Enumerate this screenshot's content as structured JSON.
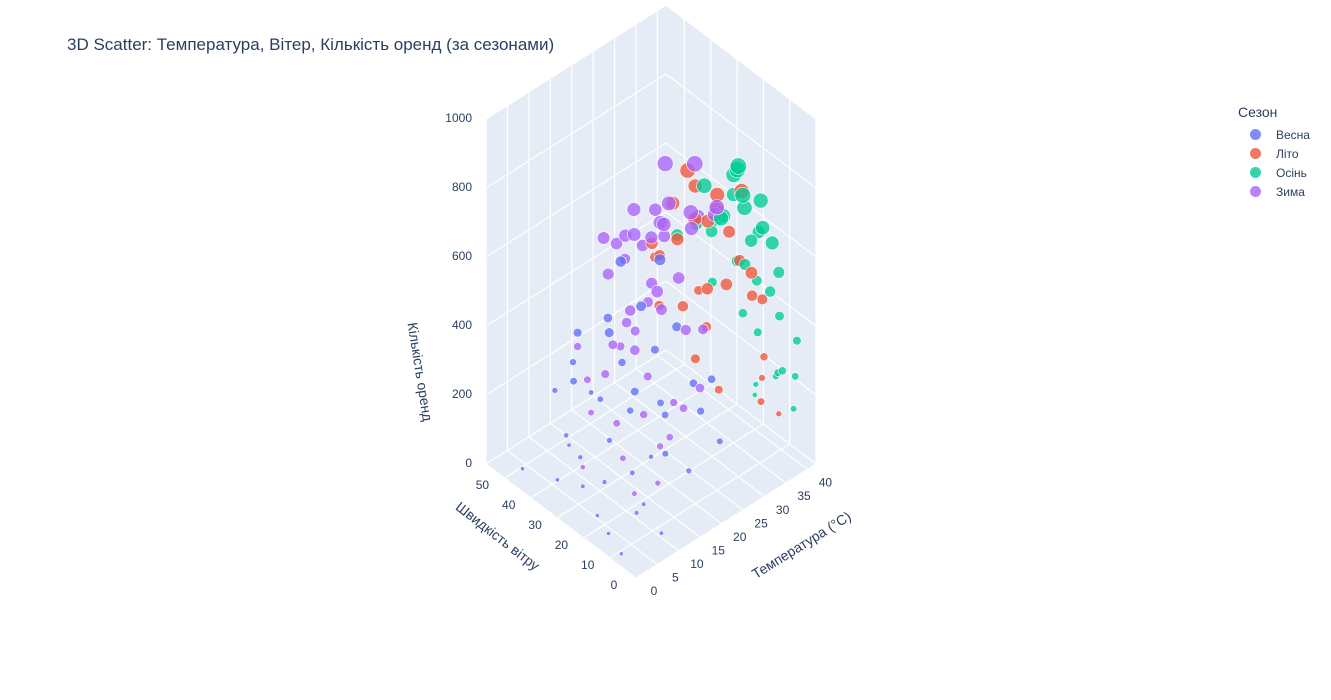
{
  "chart_data": {
    "type": "scatter",
    "projection": "3d",
    "title": "3D Scatter: Температура, Вітер, Кількість оренд (за сезонами)",
    "xlabel": "Температура (°C)",
    "ylabel": "Швидкість вітру",
    "zlabel": "Кількість оренд",
    "x_ticks": [
      "0",
      "5",
      "10",
      "15",
      "20",
      "25",
      "30",
      "35",
      "40"
    ],
    "y_ticks": [
      "0",
      "10",
      "20",
      "30",
      "40",
      "50"
    ],
    "z_ticks": [
      "0",
      "200",
      "400",
      "600",
      "800",
      "1000"
    ],
    "xlim": [
      0,
      42
    ],
    "ylim": [
      0,
      57
    ],
    "zlim": [
      0,
      1000
    ],
    "marker_size_encodes": "Кількість оренд",
    "grid": true,
    "legend_position": "top-right",
    "legend_title": "Сезон",
    "series": [
      {
        "name": "Весна",
        "color": "#636efa",
        "points": [
          [
            1.5,
            8,
            12
          ],
          [
            2.8,
            15,
            20
          ],
          [
            4.5,
            22,
            18
          ],
          [
            6,
            30,
            45
          ],
          [
            7.5,
            12,
            60
          ],
          [
            8.5,
            35,
            80
          ],
          [
            9.5,
            42,
            95
          ],
          [
            10.2,
            18,
            120
          ],
          [
            11,
            28,
            150
          ],
          [
            12,
            45,
            30
          ],
          [
            13,
            10,
            200
          ],
          [
            14,
            25,
            230
          ],
          [
            15,
            38,
            180
          ],
          [
            16,
            15,
            260
          ],
          [
            17,
            33,
            300
          ],
          [
            18,
            20,
            250
          ],
          [
            19,
            48,
            110
          ],
          [
            20,
            8,
            280
          ],
          [
            21,
            27,
            340
          ],
          [
            22,
            14,
            310
          ],
          [
            13,
            52,
            140
          ],
          [
            5,
            38,
            25
          ],
          [
            3,
            48,
            15
          ],
          [
            18,
            40,
            380
          ],
          [
            14,
            33,
            410
          ],
          [
            16,
            6,
            150
          ],
          [
            12,
            20,
            330
          ],
          [
            19,
            29,
            470
          ],
          [
            21,
            40,
            520
          ],
          [
            22,
            4,
            200
          ],
          [
            23,
            22,
            420
          ],
          [
            24,
            30,
            560
          ],
          [
            25,
            12,
            310
          ],
          [
            11,
            15,
            40
          ],
          [
            8,
            25,
            70
          ],
          [
            10,
            40,
            260
          ],
          [
            14,
            45,
            340
          ],
          [
            16,
            50,
            210
          ],
          [
            9,
            5,
            30
          ],
          [
            17,
            22,
            90
          ]
        ]
      },
      {
        "name": "Літо",
        "color": "#EF553B",
        "points": [
          [
            20,
            10,
            420
          ],
          [
            22,
            18,
            510
          ],
          [
            24,
            12,
            580
          ],
          [
            25,
            25,
            640
          ],
          [
            26,
            8,
            600
          ],
          [
            27,
            30,
            700
          ],
          [
            28,
            15,
            760
          ],
          [
            29,
            20,
            690
          ],
          [
            30,
            5,
            620
          ],
          [
            31,
            28,
            730
          ],
          [
            32,
            12,
            800
          ],
          [
            33,
            22,
            670
          ],
          [
            34,
            16,
            560
          ],
          [
            35,
            9,
            480
          ],
          [
            27,
            35,
            520
          ],
          [
            29,
            40,
            470
          ],
          [
            23,
            6,
            330
          ],
          [
            31,
            3,
            250
          ],
          [
            33,
            30,
            400
          ],
          [
            36,
            10,
            300
          ],
          [
            26,
            20,
            720
          ],
          [
            28,
            26,
            810
          ],
          [
            30,
            18,
            770
          ],
          [
            25,
            14,
            450
          ],
          [
            32,
            8,
            520
          ],
          [
            34,
            20,
            620
          ],
          [
            24,
            33,
            590
          ],
          [
            22,
            27,
            460
          ],
          [
            37,
            6,
            150
          ],
          [
            38,
            14,
            200
          ]
        ]
      },
      {
        "name": "Осінь",
        "color": "#00cc96",
        "points": [
          [
            28,
            5,
            860
          ],
          [
            30,
            10,
            900
          ],
          [
            32,
            15,
            830
          ],
          [
            34,
            8,
            780
          ],
          [
            35,
            20,
            720
          ],
          [
            36,
            12,
            650
          ],
          [
            37,
            6,
            560
          ],
          [
            38,
            16,
            470
          ],
          [
            39,
            9,
            400
          ],
          [
            40,
            4,
            350
          ],
          [
            33,
            25,
            600
          ],
          [
            31,
            20,
            680
          ],
          [
            29,
            14,
            740
          ],
          [
            27,
            18,
            820
          ],
          [
            26,
            10,
            780
          ],
          [
            36,
            3,
            300
          ],
          [
            38,
            8,
            250
          ],
          [
            40,
            12,
            200
          ],
          [
            37,
            22,
            500
          ],
          [
            35,
            28,
            420
          ],
          [
            33,
            2,
            700
          ],
          [
            30,
            26,
            640
          ],
          [
            28,
            30,
            600
          ],
          [
            39,
            18,
            150
          ],
          [
            40,
            20,
            100
          ],
          [
            34,
            14,
            560
          ],
          [
            36,
            18,
            380
          ],
          [
            32,
            4,
            740
          ],
          [
            31,
            12,
            870
          ],
          [
            29,
            6,
            810
          ],
          [
            38,
            2,
            180
          ],
          [
            35,
            6,
            520
          ],
          [
            33,
            10,
            660
          ],
          [
            37,
            14,
            340
          ],
          [
            39,
            3,
            260
          ]
        ]
      },
      {
        "name": "Зима",
        "color": "#ab63fa",
        "points": [
          [
            12,
            20,
            450
          ],
          [
            14,
            25,
            520
          ],
          [
            16,
            18,
            600
          ],
          [
            18,
            30,
            680
          ],
          [
            20,
            22,
            740
          ],
          [
            22,
            15,
            800
          ],
          [
            24,
            28,
            850
          ],
          [
            26,
            20,
            880
          ],
          [
            15,
            35,
            560
          ],
          [
            17,
            40,
            620
          ],
          [
            19,
            12,
            500
          ],
          [
            21,
            35,
            700
          ],
          [
            23,
            25,
            760
          ],
          [
            25,
            10,
            820
          ],
          [
            13,
            30,
            400
          ],
          [
            11,
            15,
            300
          ],
          [
            10,
            28,
            350
          ],
          [
            9,
            22,
            250
          ],
          [
            8,
            18,
            180
          ],
          [
            7,
            12,
            120
          ],
          [
            6,
            30,
            100
          ],
          [
            12,
            38,
            260
          ],
          [
            14,
            45,
            300
          ],
          [
            16,
            8,
            320
          ],
          [
            18,
            5,
            380
          ],
          [
            20,
            40,
            580
          ],
          [
            22,
            30,
            640
          ],
          [
            24,
            18,
            720
          ],
          [
            26,
            35,
            660
          ],
          [
            28,
            22,
            700
          ],
          [
            15,
            20,
            350
          ],
          [
            17,
            28,
            420
          ],
          [
            19,
            25,
            560
          ],
          [
            21,
            18,
            600
          ],
          [
            23,
            12,
            470
          ],
          [
            13,
            12,
            210
          ],
          [
            11,
            35,
            190
          ],
          [
            10,
            8,
            150
          ],
          [
            20,
            28,
            480
          ],
          [
            18,
            15,
            280
          ],
          [
            16,
            32,
            360
          ],
          [
            14,
            10,
            240
          ],
          [
            22,
            40,
            520
          ],
          [
            25,
            30,
            620
          ],
          [
            27,
            14,
            760
          ],
          [
            19,
            35,
            640
          ],
          [
            21,
            25,
            720
          ],
          [
            17,
            18,
            540
          ],
          [
            15,
            28,
            460
          ],
          [
            23,
            35,
            580
          ]
        ]
      }
    ]
  }
}
